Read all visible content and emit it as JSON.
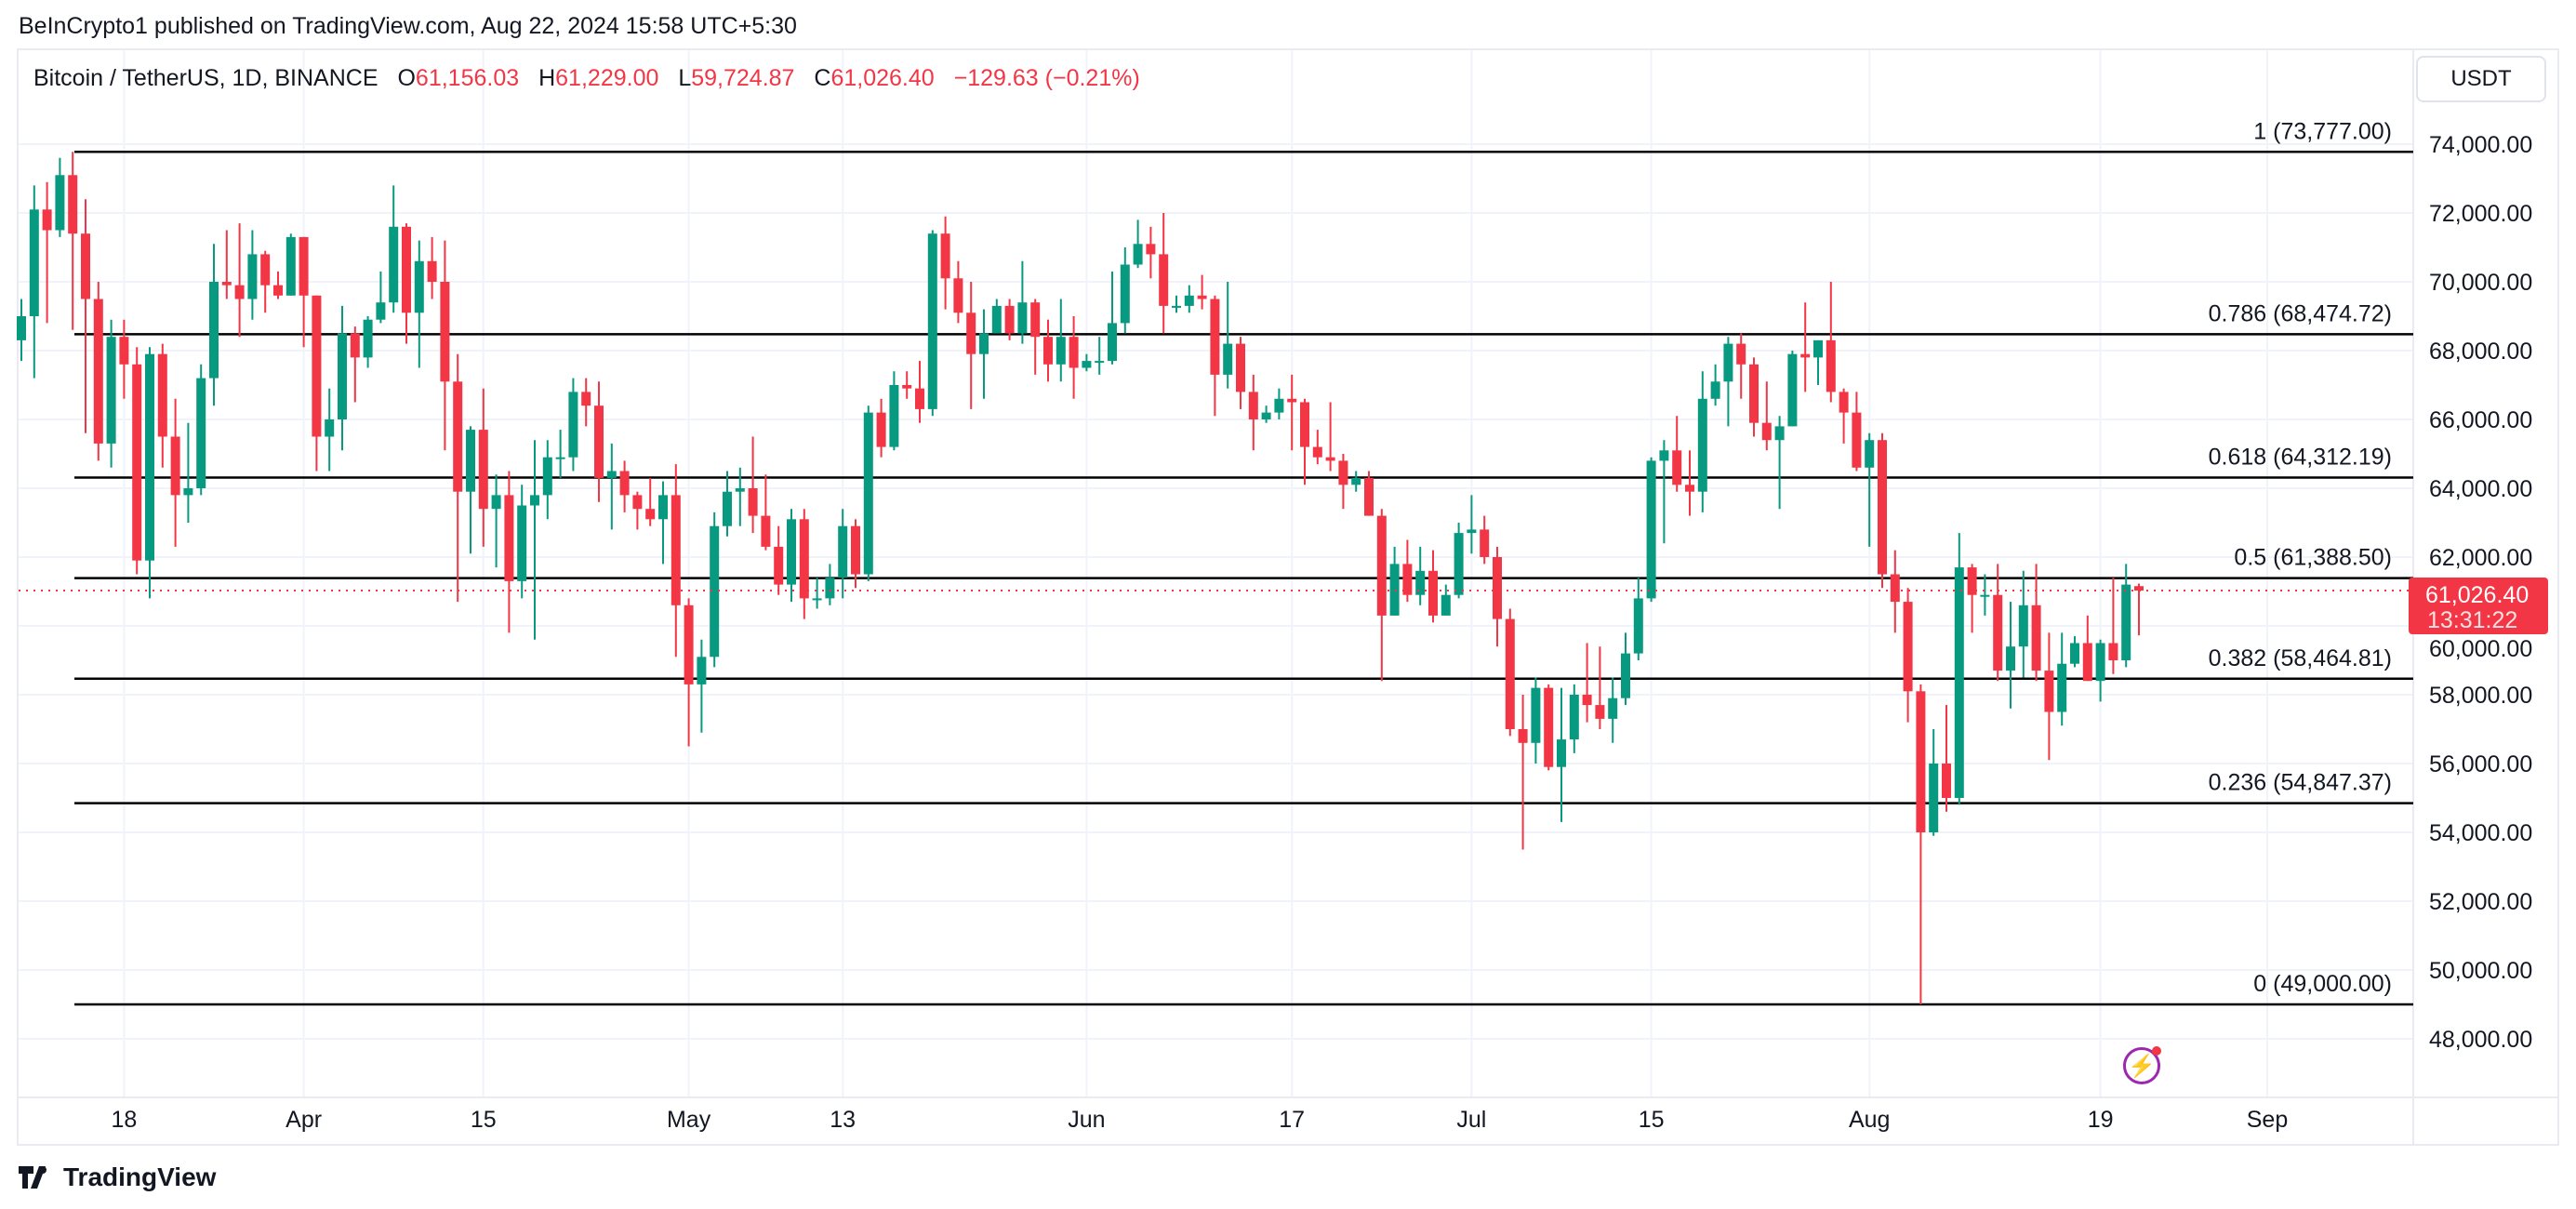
{
  "header": {
    "published": "BeInCrypto1 published on TradingView.com, Aug 22, 2024 15:58 UTC+5:30"
  },
  "legend": {
    "symbol": "Bitcoin / TetherUS, 1D, BINANCE",
    "o_label": "O",
    "o": "61,156.03",
    "h_label": "H",
    "h": "61,229.00",
    "l_label": "L",
    "l": "59,724.87",
    "c_label": "C",
    "c": "61,026.40",
    "change": "−129.63 (−0.21%)"
  },
  "currency_button": "USDT",
  "price_tag": {
    "price": "61,026.40",
    "countdown": "13:31:22"
  },
  "footer": {
    "brand": "TradingView"
  },
  "colors": {
    "up": "#089981",
    "down": "#f23645",
    "grid": "#f0f3fa",
    "fib": "#000000"
  },
  "chart_data": {
    "type": "candlestick",
    "title": "Bitcoin / TetherUS, 1D, BINANCE",
    "start_date": "2024-03-10",
    "ylim": [
      47000,
      76000
    ],
    "y_ticks": [
      48000,
      50000,
      52000,
      54000,
      56000,
      58000,
      60000,
      62000,
      64000,
      66000,
      68000,
      70000,
      72000,
      74000
    ],
    "y_tick_labels": [
      "48,000.00",
      "50,000.00",
      "52,000.00",
      "54,000.00",
      "56,000.00",
      "58,000.00",
      "60,000.00",
      "62,000.00",
      "64,000.00",
      "66,000.00",
      "68,000.00",
      "70,000.00",
      "72,000.00",
      "74,000.00"
    ],
    "x_ticks": [
      {
        "day": 8,
        "label": "18"
      },
      {
        "day": 22,
        "label": "Apr"
      },
      {
        "day": 36,
        "label": "15"
      },
      {
        "day": 52,
        "label": "May"
      },
      {
        "day": 64,
        "label": "13"
      },
      {
        "day": 83,
        "label": "Jun"
      },
      {
        "day": 99,
        "label": "17"
      },
      {
        "day": 113,
        "label": "Jul"
      },
      {
        "day": 127,
        "label": "15"
      },
      {
        "day": 144,
        "label": "Aug"
      },
      {
        "day": 162,
        "label": "19"
      },
      {
        "day": 175,
        "label": "Sep"
      }
    ],
    "fib_levels": [
      {
        "ratio": 1,
        "price": 73777.0,
        "label": "1 (73,777.00)"
      },
      {
        "ratio": 0.786,
        "price": 68474.72,
        "label": "0.786 (68,474.72)"
      },
      {
        "ratio": 0.618,
        "price": 64312.19,
        "label": "0.618 (64,312.19)"
      },
      {
        "ratio": 0.5,
        "price": 61388.5,
        "label": "0.5 (61,388.50)"
      },
      {
        "ratio": 0.382,
        "price": 58464.81,
        "label": "0.382 (58,464.81)"
      },
      {
        "ratio": 0.236,
        "price": 54847.37,
        "label": "0.236 (54,847.37)"
      },
      {
        "ratio": 0,
        "price": 49000.0,
        "label": "0 (49,000.00)"
      }
    ],
    "last_price": 61026.4,
    "ohlc": [
      [
        68300,
        69500,
        67700,
        69000
      ],
      [
        69000,
        72800,
        67200,
        72100
      ],
      [
        72100,
        72900,
        68800,
        71500
      ],
      [
        71500,
        73600,
        71300,
        73100
      ],
      [
        73100,
        73777,
        68600,
        71400
      ],
      [
        71400,
        72400,
        65600,
        69500
      ],
      [
        69500,
        70000,
        64800,
        65300
      ],
      [
        65300,
        68900,
        64600,
        68400
      ],
      [
        68400,
        68900,
        66600,
        67600
      ],
      [
        67600,
        68100,
        61500,
        61900
      ],
      [
        61900,
        68100,
        60800,
        67900
      ],
      [
        67900,
        68200,
        64600,
        65500
      ],
      [
        65500,
        66600,
        62300,
        63800
      ],
      [
        63800,
        65900,
        63000,
        64000
      ],
      [
        64000,
        67600,
        63800,
        67200
      ],
      [
        67200,
        71100,
        66400,
        70000
      ],
      [
        70000,
        71500,
        69500,
        69900
      ],
      [
        69900,
        71700,
        68400,
        69500
      ],
      [
        69500,
        71500,
        68900,
        70800
      ],
      [
        70800,
        70900,
        69100,
        69900
      ],
      [
        69900,
        70300,
        69500,
        69600
      ],
      [
        69600,
        71400,
        69600,
        71300
      ],
      [
        71300,
        71300,
        68100,
        69600
      ],
      [
        69600,
        69600,
        64500,
        65500
      ],
      [
        65500,
        66900,
        64500,
        66000
      ],
      [
        66000,
        69300,
        65100,
        68500
      ],
      [
        68500,
        68700,
        66500,
        67800
      ],
      [
        67800,
        69000,
        67500,
        68900
      ],
      [
        68900,
        70300,
        68800,
        69400
      ],
      [
        69400,
        72800,
        69100,
        71600
      ],
      [
        71600,
        71700,
        68200,
        69100
      ],
      [
        69100,
        71200,
        67500,
        70600
      ],
      [
        70600,
        71300,
        69500,
        70000
      ],
      [
        70000,
        71200,
        65100,
        67100
      ],
      [
        67100,
        67900,
        60700,
        63900
      ],
      [
        63900,
        65800,
        62100,
        65700
      ],
      [
        65700,
        66900,
        62300,
        63400
      ],
      [
        63400,
        64400,
        61700,
        63800
      ],
      [
        63800,
        64500,
        59800,
        61300
      ],
      [
        61300,
        64100,
        60800,
        63500
      ],
      [
        63500,
        65400,
        59600,
        63800
      ],
      [
        63800,
        65400,
        63100,
        64900
      ],
      [
        64900,
        65700,
        64300,
        64900
      ],
      [
        64900,
        67200,
        64500,
        66800
      ],
      [
        66800,
        67200,
        65800,
        66400
      ],
      [
        66400,
        67100,
        63600,
        64300
      ],
      [
        64300,
        65300,
        62800,
        64500
      ],
      [
        64500,
        64800,
        63300,
        63800
      ],
      [
        63800,
        63900,
        62800,
        63400
      ],
      [
        63400,
        64300,
        62900,
        63100
      ],
      [
        63100,
        64200,
        61800,
        63800
      ],
      [
        63800,
        64700,
        59100,
        60600
      ],
      [
        60600,
        60800,
        56500,
        58300
      ],
      [
        58300,
        59600,
        56900,
        59100
      ],
      [
        59100,
        63300,
        58800,
        62900
      ],
      [
        62900,
        64500,
        62600,
        63900
      ],
      [
        63900,
        64600,
        62900,
        64000
      ],
      [
        64000,
        65500,
        62700,
        63200
      ],
      [
        63200,
        64400,
        62200,
        62300
      ],
      [
        62300,
        62900,
        60900,
        61200
      ],
      [
        61200,
        63400,
        60700,
        63100
      ],
      [
        63100,
        63400,
        60200,
        60800
      ],
      [
        60800,
        61400,
        60500,
        60800
      ],
      [
        60800,
        61800,
        60600,
        61400
      ],
      [
        61400,
        63400,
        60800,
        62900
      ],
      [
        62900,
        63100,
        61100,
        61500
      ],
      [
        61500,
        66400,
        61300,
        66200
      ],
      [
        66200,
        66600,
        64900,
        65200
      ],
      [
        65200,
        67400,
        65100,
        67000
      ],
      [
        67000,
        67400,
        66600,
        66900
      ],
      [
        66900,
        67700,
        65900,
        66300
      ],
      [
        66300,
        71500,
        66100,
        71400
      ],
      [
        71400,
        71900,
        69200,
        70100
      ],
      [
        70100,
        70600,
        68800,
        69100
      ],
      [
        69100,
        70000,
        66300,
        67900
      ],
      [
        67900,
        69200,
        66600,
        68500
      ],
      [
        68500,
        69500,
        68500,
        69300
      ],
      [
        69300,
        69500,
        68300,
        68500
      ],
      [
        68500,
        70600,
        68200,
        69400
      ],
      [
        69400,
        69500,
        67300,
        68400
      ],
      [
        68400,
        68900,
        67100,
        67600
      ],
      [
        67600,
        69500,
        67100,
        68400
      ],
      [
        68400,
        69000,
        66600,
        67500
      ],
      [
        67500,
        67900,
        67400,
        67700
      ],
      [
        67700,
        68400,
        67300,
        67700
      ],
      [
        67700,
        70300,
        67600,
        68800
      ],
      [
        68800,
        71000,
        68500,
        70500
      ],
      [
        70500,
        71800,
        70400,
        71100
      ],
      [
        71100,
        71600,
        70100,
        70800
      ],
      [
        70800,
        72000,
        68500,
        69300
      ],
      [
        69300,
        69600,
        69100,
        69300
      ],
      [
        69300,
        69900,
        69100,
        69600
      ],
      [
        69600,
        70200,
        69200,
        69500
      ],
      [
        69500,
        69600,
        66100,
        67300
      ],
      [
        67300,
        70000,
        66900,
        68200
      ],
      [
        68200,
        68400,
        66300,
        66800
      ],
      [
        66800,
        67300,
        65100,
        66000
      ],
      [
        66000,
        66400,
        65900,
        66200
      ],
      [
        66200,
        66900,
        66000,
        66600
      ],
      [
        66600,
        67300,
        65100,
        66500
      ],
      [
        66500,
        66600,
        64100,
        65200
      ],
      [
        65200,
        65700,
        64700,
        64900
      ],
      [
        64900,
        66500,
        64500,
        64800
      ],
      [
        64800,
        65000,
        63400,
        64100
      ],
      [
        64100,
        64500,
        63900,
        64300
      ],
      [
        64300,
        64500,
        63200,
        63200
      ],
      [
        63200,
        63400,
        58400,
        60300
      ],
      [
        60300,
        62300,
        60300,
        61800
      ],
      [
        61800,
        62500,
        60700,
        60900
      ],
      [
        60900,
        62300,
        60600,
        61600
      ],
      [
        61600,
        62200,
        60100,
        60300
      ],
      [
        60300,
        61200,
        60300,
        60900
      ],
      [
        60900,
        63000,
        60800,
        62700
      ],
      [
        62700,
        63800,
        62100,
        62800
      ],
      [
        62800,
        63200,
        61800,
        62000
      ],
      [
        62000,
        62300,
        59400,
        60200
      ],
      [
        60200,
        60500,
        56800,
        57000
      ],
      [
        57000,
        58000,
        53500,
        56600
      ],
      [
        56600,
        58500,
        56000,
        58200
      ],
      [
        58200,
        58300,
        55800,
        55900
      ],
      [
        55900,
        58200,
        54300,
        56700
      ],
      [
        56700,
        58300,
        56300,
        58000
      ],
      [
        58000,
        59500,
        57200,
        57700
      ],
      [
        57700,
        59400,
        57000,
        57300
      ],
      [
        57300,
        58500,
        56600,
        57900
      ],
      [
        57900,
        59800,
        57700,
        59200
      ],
      [
        59200,
        61400,
        59000,
        60800
      ],
      [
        60800,
        64900,
        60700,
        64800
      ],
      [
        64800,
        65400,
        62400,
        65100
      ],
      [
        65100,
        66100,
        63900,
        64100
      ],
      [
        64100,
        65100,
        63200,
        63900
      ],
      [
        63900,
        67400,
        63300,
        66600
      ],
      [
        66600,
        67600,
        66400,
        67100
      ],
      [
        67100,
        68400,
        65800,
        68200
      ],
      [
        68200,
        68500,
        66600,
        67600
      ],
      [
        67600,
        67800,
        65500,
        65900
      ],
      [
        65900,
        67100,
        65100,
        65400
      ],
      [
        65400,
        66100,
        63400,
        65800
      ],
      [
        65800,
        68000,
        65800,
        67900
      ],
      [
        67900,
        69400,
        66800,
        67800
      ],
      [
        67800,
        68300,
        67000,
        68300
      ],
      [
        68300,
        70000,
        66500,
        66800
      ],
      [
        66800,
        66900,
        65300,
        66200
      ],
      [
        66200,
        66800,
        64500,
        64600
      ],
      [
        64600,
        65600,
        62300,
        65400
      ],
      [
        65400,
        65600,
        61100,
        61500
      ],
      [
        61500,
        62200,
        59800,
        60700
      ],
      [
        60700,
        61100,
        57200,
        58100
      ],
      [
        58100,
        58300,
        49000,
        54000
      ],
      [
        54000,
        57000,
        53900,
        56000
      ],
      [
        56000,
        57700,
        54600,
        55000
      ],
      [
        55000,
        62700,
        54800,
        61700
      ],
      [
        61700,
        61800,
        59800,
        60900
      ],
      [
        60900,
        61500,
        60300,
        60900
      ],
      [
        60900,
        61800,
        58400,
        58700
      ],
      [
        58700,
        60700,
        57600,
        59400
      ],
      [
        59400,
        61600,
        58500,
        60600
      ],
      [
        60600,
        61800,
        58400,
        58700
      ],
      [
        58700,
        59800,
        56100,
        57500
      ],
      [
        57500,
        59800,
        57100,
        58900
      ],
      [
        58900,
        59700,
        58800,
        59500
      ],
      [
        59500,
        60300,
        58400,
        58400
      ],
      [
        58400,
        59600,
        57800,
        59500
      ],
      [
        59500,
        61400,
        58600,
        59000
      ],
      [
        59000,
        61800,
        58800,
        61200
      ],
      [
        61156,
        61229,
        59725,
        61026
      ]
    ]
  }
}
